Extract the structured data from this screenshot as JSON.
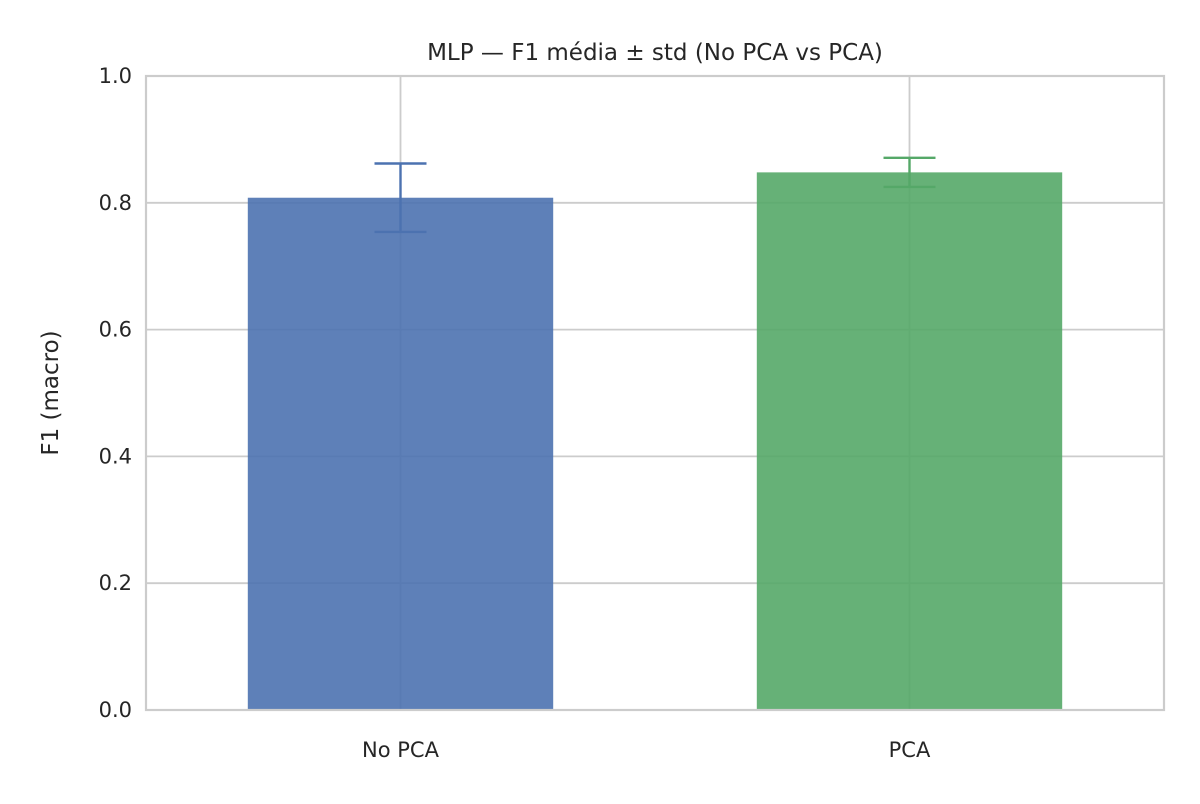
{
  "chart_data": {
    "type": "bar",
    "title": "MLP — F1 média ± std (No PCA vs PCA)",
    "xlabel": "",
    "ylabel": "F1 (macro)",
    "ylim": [
      0,
      1
    ],
    "yticks": [
      0,
      0.2,
      0.4,
      0.6,
      0.8,
      1.0
    ],
    "ytick_labels": [
      "0.0",
      "0.2",
      "0.4",
      "0.6",
      "0.8",
      "1.0"
    ],
    "categories": [
      "No PCA",
      "PCA"
    ],
    "values": [
      0.808,
      0.848
    ],
    "errors": [
      0.054,
      0.023
    ],
    "colors": [
      "#4c72b0",
      "#55a868"
    ],
    "grid": true
  }
}
